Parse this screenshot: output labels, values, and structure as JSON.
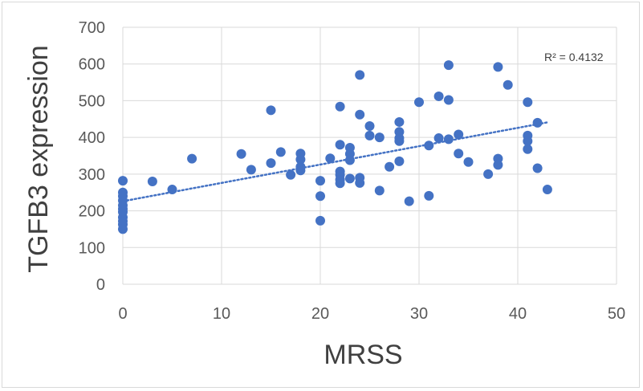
{
  "chart_data": {
    "type": "scatter",
    "title": "",
    "xlabel": "MRSS",
    "ylabel": "TGFB3 expression",
    "xlim": [
      0,
      50
    ],
    "ylim": [
      0,
      700
    ],
    "xticks": [
      0,
      10,
      20,
      30,
      40,
      50
    ],
    "yticks": [
      0,
      100,
      200,
      300,
      400,
      500,
      600,
      700
    ],
    "grid": "both",
    "legend": "none",
    "marker_color": "#4472C4",
    "trendline": {
      "type": "linear",
      "style": "dotted",
      "color": "#4472C4",
      "x": [
        0,
        43
      ],
      "y": [
        226,
        441
      ],
      "annotation": "R² = 0.4132"
    },
    "points": [
      {
        "x": 0,
        "y": 282
      },
      {
        "x": 0,
        "y": 250
      },
      {
        "x": 0,
        "y": 240
      },
      {
        "x": 0,
        "y": 228
      },
      {
        "x": 0,
        "y": 215
      },
      {
        "x": 0,
        "y": 205
      },
      {
        "x": 0,
        "y": 197
      },
      {
        "x": 0,
        "y": 182
      },
      {
        "x": 0,
        "y": 172
      },
      {
        "x": 0,
        "y": 163
      },
      {
        "x": 0,
        "y": 150
      },
      {
        "x": 3,
        "y": 280
      },
      {
        "x": 5,
        "y": 258
      },
      {
        "x": 7,
        "y": 342
      },
      {
        "x": 12,
        "y": 355
      },
      {
        "x": 13,
        "y": 312
      },
      {
        "x": 15,
        "y": 474
      },
      {
        "x": 15,
        "y": 330
      },
      {
        "x": 16,
        "y": 360
      },
      {
        "x": 17,
        "y": 298
      },
      {
        "x": 18,
        "y": 356
      },
      {
        "x": 18,
        "y": 340
      },
      {
        "x": 18,
        "y": 320
      },
      {
        "x": 18,
        "y": 310
      },
      {
        "x": 20,
        "y": 282
      },
      {
        "x": 20,
        "y": 240
      },
      {
        "x": 20,
        "y": 173
      },
      {
        "x": 21,
        "y": 343
      },
      {
        "x": 22,
        "y": 484
      },
      {
        "x": 22,
        "y": 380
      },
      {
        "x": 22,
        "y": 307
      },
      {
        "x": 22,
        "y": 298
      },
      {
        "x": 22,
        "y": 285
      },
      {
        "x": 22,
        "y": 275
      },
      {
        "x": 23,
        "y": 372
      },
      {
        "x": 23,
        "y": 355
      },
      {
        "x": 23,
        "y": 338
      },
      {
        "x": 23,
        "y": 288
      },
      {
        "x": 24,
        "y": 570
      },
      {
        "x": 24,
        "y": 462
      },
      {
        "x": 24,
        "y": 290
      },
      {
        "x": 24,
        "y": 276
      },
      {
        "x": 25,
        "y": 431
      },
      {
        "x": 25,
        "y": 405
      },
      {
        "x": 26,
        "y": 400
      },
      {
        "x": 26,
        "y": 255
      },
      {
        "x": 27,
        "y": 320
      },
      {
        "x": 28,
        "y": 442
      },
      {
        "x": 28,
        "y": 415
      },
      {
        "x": 28,
        "y": 398
      },
      {
        "x": 28,
        "y": 390
      },
      {
        "x": 28,
        "y": 335
      },
      {
        "x": 29,
        "y": 226
      },
      {
        "x": 30,
        "y": 496
      },
      {
        "x": 31,
        "y": 378
      },
      {
        "x": 31,
        "y": 241
      },
      {
        "x": 32,
        "y": 512
      },
      {
        "x": 32,
        "y": 398
      },
      {
        "x": 33,
        "y": 597
      },
      {
        "x": 33,
        "y": 502
      },
      {
        "x": 33,
        "y": 395
      },
      {
        "x": 34,
        "y": 408
      },
      {
        "x": 34,
        "y": 356
      },
      {
        "x": 35,
        "y": 333
      },
      {
        "x": 37,
        "y": 300
      },
      {
        "x": 38,
        "y": 592
      },
      {
        "x": 38,
        "y": 342
      },
      {
        "x": 38,
        "y": 325
      },
      {
        "x": 39,
        "y": 543
      },
      {
        "x": 41,
        "y": 496
      },
      {
        "x": 41,
        "y": 405
      },
      {
        "x": 41,
        "y": 390
      },
      {
        "x": 41,
        "y": 368
      },
      {
        "x": 42,
        "y": 440
      },
      {
        "x": 42,
        "y": 316
      },
      {
        "x": 43,
        "y": 258
      }
    ]
  }
}
